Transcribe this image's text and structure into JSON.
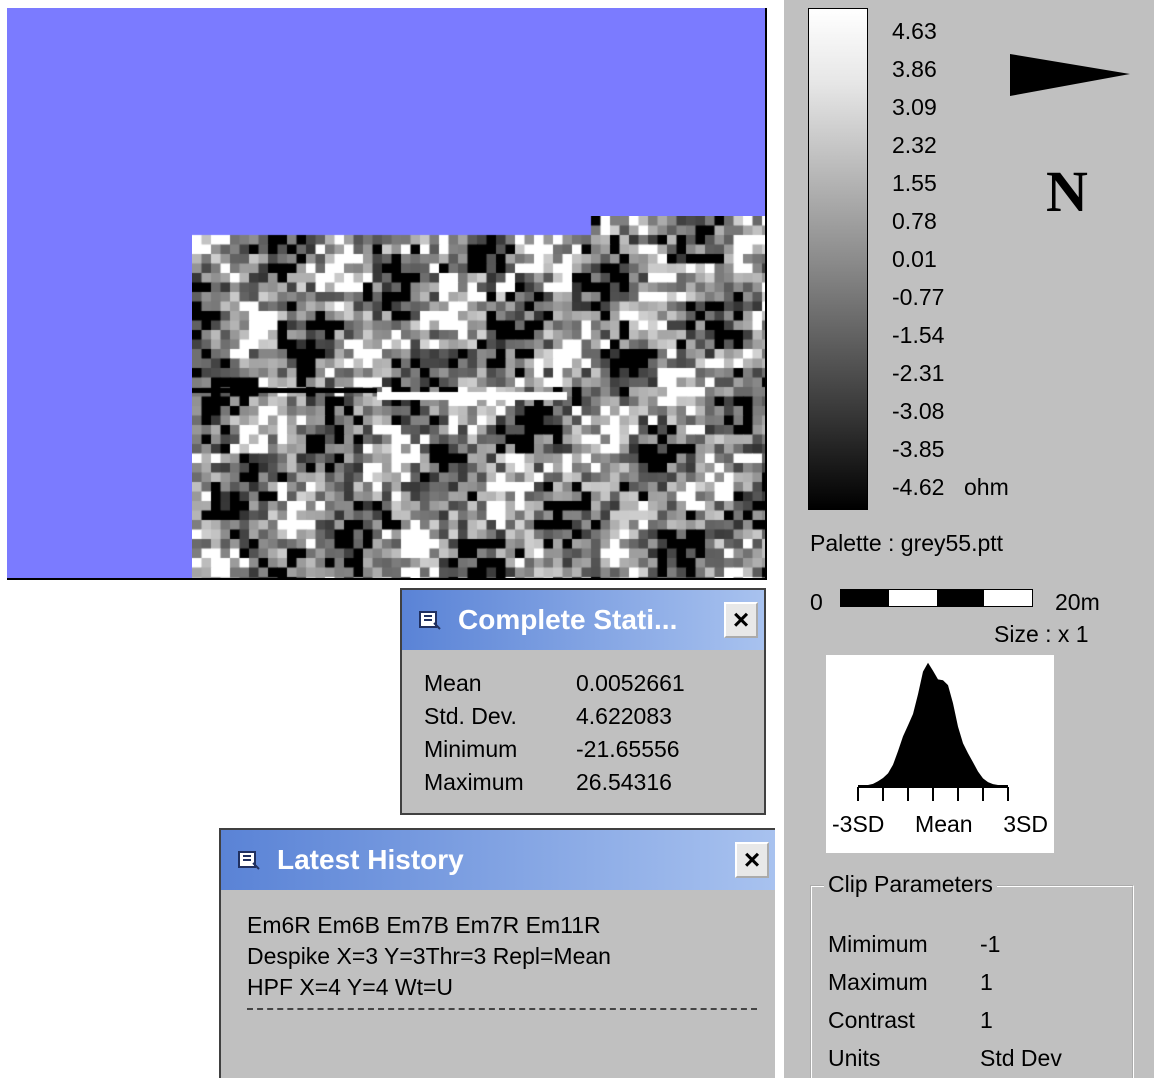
{
  "legend": {
    "labels": [
      "4.63",
      "3.86",
      "3.09",
      "2.32",
      "1.55",
      "0.78",
      "0.01",
      "-0.77",
      "-1.54",
      "-2.31",
      "-3.08",
      "-3.85",
      "-4.62"
    ],
    "unit": "ohm"
  },
  "north": {
    "label": "N",
    "icon": "north-arrow-icon"
  },
  "palette": {
    "label": "Palette : grey55.ptt"
  },
  "scale": {
    "start": "0",
    "end": "20m",
    "size": "Size : x 1"
  },
  "histogram": {
    "left_label": "-3SD",
    "mid_label": "Mean",
    "right_label": "3SD"
  },
  "clip": {
    "title": "Clip Parameters",
    "rows": [
      {
        "key": "Mimimum",
        "value": "-1"
      },
      {
        "key": "Maximum",
        "value": "1"
      },
      {
        "key": "Contrast",
        "value": "1"
      },
      {
        "key": "Units",
        "value": "Std Dev"
      }
    ]
  },
  "stats_window": {
    "title": "Complete Stati...",
    "close": "×",
    "rows": [
      {
        "key": "Mean",
        "value": "0.0052661"
      },
      {
        "key": "Std. Dev.",
        "value": "4.622083"
      },
      {
        "key": "Minimum",
        "value": "-21.65556"
      },
      {
        "key": "Maximum",
        "value": "26.54316"
      }
    ]
  },
  "history_window": {
    "title": "Latest History",
    "close": "×",
    "lines": [
      "Em6R Em6B Em7B Em7R Em11R",
      "Despike X=3 Y=3Thr=3 Repl=Mean",
      "HPF X=4 Y=4 Wt=U"
    ]
  },
  "colors": {
    "map_background": "#7b7bff",
    "panel": "#c0c0c0",
    "title_start": "#5a83d6",
    "title_end": "#a8c2ef"
  }
}
